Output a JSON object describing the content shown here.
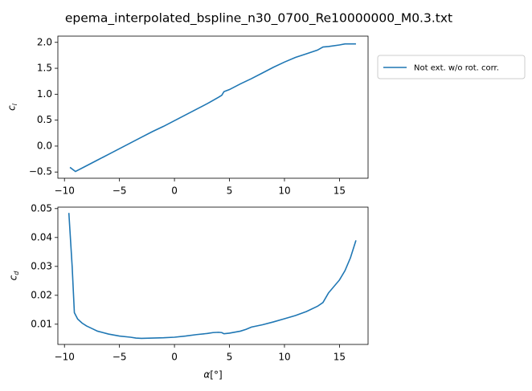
{
  "figure": {
    "suptitle": "epema_interpolated_bspline_n30_0700_Re10000000_M0.3.txt"
  },
  "chart_data": [
    {
      "type": "line",
      "ylabel": "c_l",
      "xlim": [
        -10.6,
        17.6
      ],
      "ylim": [
        -0.62,
        2.12
      ],
      "xticks": [
        -10,
        -5,
        0,
        5,
        10,
        15
      ],
      "yticks": [
        -0.5,
        0.0,
        0.5,
        1.0,
        1.5,
        2.0
      ],
      "xtick_labels": [
        "−10",
        "−5",
        "0",
        "5",
        "10",
        "15"
      ],
      "ytick_labels": [
        "−0.5",
        "0.0",
        "0.5",
        "1.0",
        "1.5",
        "2.0"
      ],
      "legend": {
        "placement": "right-outside",
        "entries": [
          "Not ext. w/o rot. corr."
        ]
      },
      "series": [
        {
          "name": "Not ext. w/o rot. corr.",
          "color": "#1f77b4",
          "x": [
            -9.5,
            -9.0,
            -8.0,
            -7.0,
            -6.0,
            -5.0,
            -4.0,
            -3.0,
            -2.0,
            -1.0,
            0.0,
            1.0,
            2.0,
            3.0,
            4.0,
            4.3,
            4.5,
            5.0,
            6.0,
            7.0,
            8.0,
            9.0,
            10.0,
            11.0,
            12.0,
            13.0,
            13.5,
            14.0,
            15.0,
            15.5,
            16.0,
            16.5
          ],
          "y": [
            -0.41,
            -0.49,
            -0.38,
            -0.27,
            -0.16,
            -0.05,
            0.06,
            0.17,
            0.28,
            0.38,
            0.49,
            0.6,
            0.71,
            0.82,
            0.94,
            0.98,
            1.05,
            1.09,
            1.2,
            1.3,
            1.41,
            1.52,
            1.62,
            1.71,
            1.78,
            1.85,
            1.91,
            1.92,
            1.95,
            1.97,
            1.97,
            1.97
          ]
        }
      ]
    },
    {
      "type": "line",
      "ylabel": "c_d",
      "xlabel": "α[°]",
      "xlim": [
        -10.6,
        17.6
      ],
      "ylim": [
        0.003,
        0.0505
      ],
      "xticks": [
        -10,
        -5,
        0,
        5,
        10,
        15
      ],
      "yticks": [
        0.01,
        0.02,
        0.03,
        0.04,
        0.05
      ],
      "xtick_labels": [
        "−10",
        "−5",
        "0",
        "5",
        "10",
        "15"
      ],
      "ytick_labels": [
        "0.01",
        "0.02",
        "0.03",
        "0.04",
        "0.05"
      ],
      "series": [
        {
          "name": "Not ext. w/o rot. corr.",
          "color": "#1f77b4",
          "x": [
            -9.6,
            -9.3,
            -9.1,
            -8.8,
            -8.4,
            -8.0,
            -7.5,
            -7.0,
            -6.0,
            -5.0,
            -4.0,
            -3.5,
            -3.0,
            -2.0,
            -1.0,
            0.0,
            1.0,
            2.0,
            3.0,
            3.5,
            4.0,
            4.3,
            4.5,
            5.0,
            6.0,
            6.5,
            7.0,
            8.0,
            9.0,
            10.0,
            11.0,
            12.0,
            13.0,
            13.5,
            14.0,
            15.0,
            15.5,
            16.0,
            16.5
          ],
          "y": [
            0.0485,
            0.03,
            0.014,
            0.0118,
            0.0104,
            0.0094,
            0.0085,
            0.0076,
            0.0066,
            0.0059,
            0.0055,
            0.0052,
            0.0051,
            0.0052,
            0.0053,
            0.0055,
            0.0059,
            0.0064,
            0.0068,
            0.0071,
            0.0072,
            0.0071,
            0.0067,
            0.0069,
            0.0076,
            0.0082,
            0.009,
            0.0098,
            0.0108,
            0.0119,
            0.013,
            0.0144,
            0.0162,
            0.0175,
            0.0208,
            0.0253,
            0.0285,
            0.033,
            0.039
          ]
        }
      ]
    }
  ]
}
